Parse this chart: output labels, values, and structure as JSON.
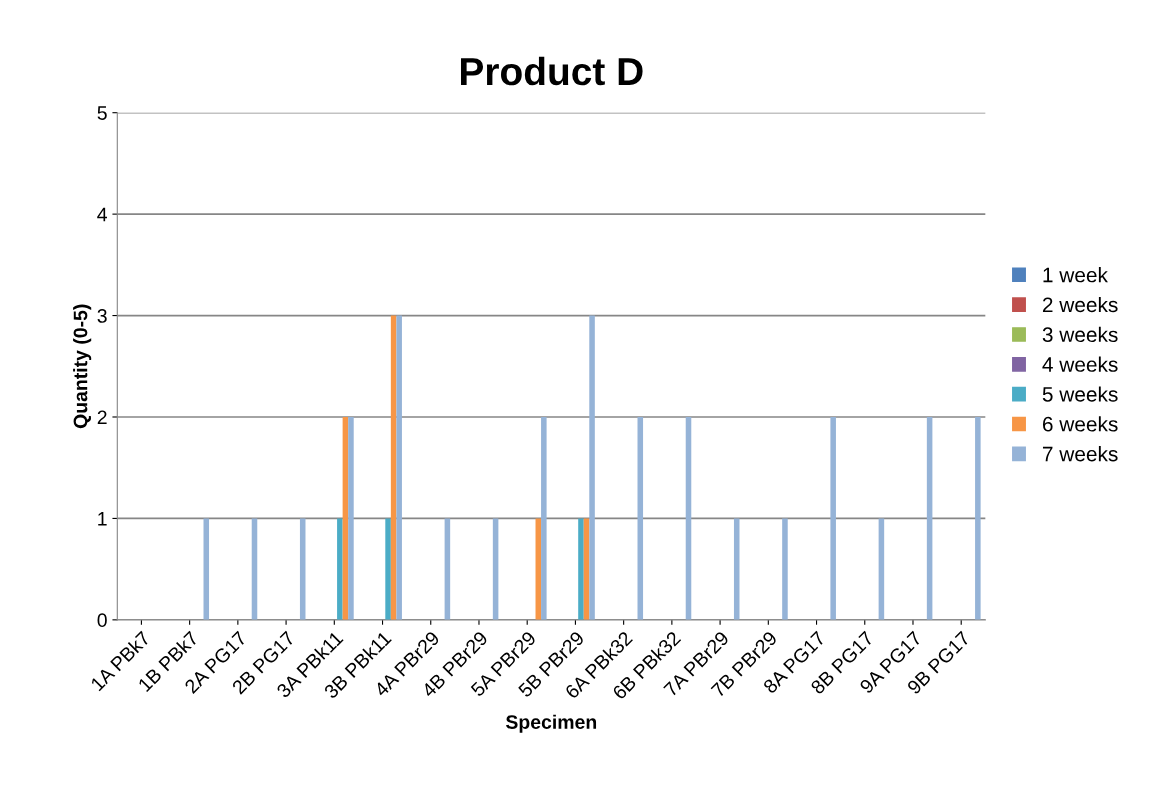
{
  "chart_data": {
    "type": "bar",
    "title": "Product D",
    "xlabel": "Specimen",
    "ylabel": "Quantity (0-5)",
    "categories": [
      "1A PBk7",
      "1B PBk7",
      "2A PG17",
      "2B PG17",
      "3A PBk11",
      "3B PBk11",
      "4A PBr29",
      "4B PBr29",
      "5A PBr29",
      "5B PBr29",
      "6A PBk32",
      "6B PBk32",
      "7A PBr29",
      "7B PBr29",
      "8A PG17",
      "8B PG17",
      "9A PG17",
      "9B PG17"
    ],
    "series": [
      {
        "name": "1 week",
        "color": "#4f81bd",
        "values": [
          0,
          0,
          0,
          0,
          0,
          0,
          0,
          0,
          0,
          0,
          0,
          0,
          0,
          0,
          0,
          0,
          0,
          0
        ]
      },
      {
        "name": "2 weeks",
        "color": "#c0504d",
        "values": [
          0,
          0,
          0,
          0,
          0,
          0,
          0,
          0,
          0,
          0,
          0,
          0,
          0,
          0,
          0,
          0,
          0,
          0
        ]
      },
      {
        "name": "3 weeks",
        "color": "#9bbb59",
        "values": [
          0,
          0,
          0,
          0,
          0,
          0,
          0,
          0,
          0,
          0,
          0,
          0,
          0,
          0,
          0,
          0,
          0,
          0
        ]
      },
      {
        "name": "4 weeks",
        "color": "#8064a2",
        "values": [
          0,
          0,
          0,
          0,
          0,
          0,
          0,
          0,
          0,
          0,
          0,
          0,
          0,
          0,
          0,
          0,
          0,
          0
        ]
      },
      {
        "name": "5 weeks",
        "color": "#4bacc6",
        "values": [
          0,
          0,
          0,
          0,
          1,
          1,
          0,
          0,
          0,
          1,
          0,
          0,
          0,
          0,
          0,
          0,
          0,
          0
        ]
      },
      {
        "name": "6 weeks",
        "color": "#f79646",
        "values": [
          0,
          0,
          0,
          0,
          2,
          3,
          0,
          0,
          1,
          1,
          0,
          0,
          0,
          0,
          0,
          0,
          0,
          0
        ]
      },
      {
        "name": "7 weeks",
        "color": "#95b3d7",
        "values": [
          0,
          1,
          1,
          1,
          2,
          3,
          1,
          1,
          2,
          3,
          2,
          2,
          1,
          1,
          2,
          1,
          2,
          2
        ]
      }
    ],
    "ylim": [
      0,
      5
    ],
    "yticks": [
      0,
      1,
      2,
      3,
      4,
      5
    ],
    "grid": "y",
    "legend": "right"
  }
}
